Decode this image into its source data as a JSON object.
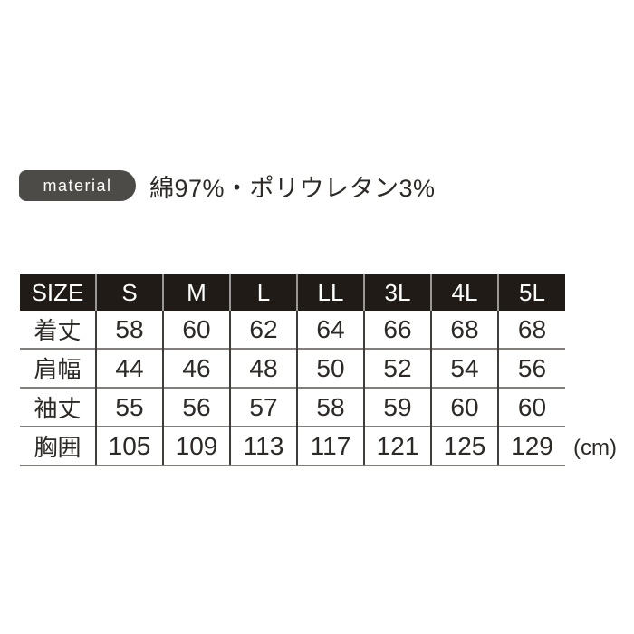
{
  "material": {
    "badge_label": "material",
    "composition": "綿97%・ポリウレタン3%"
  },
  "size_table": {
    "columns": [
      "SIZE",
      "S",
      "M",
      "L",
      "LL",
      "3L",
      "4L",
      "5L"
    ],
    "rows": [
      {
        "label": "着丈",
        "values": [
          "58",
          "60",
          "62",
          "64",
          "66",
          "68",
          "68"
        ]
      },
      {
        "label": "肩幅",
        "values": [
          "44",
          "46",
          "48",
          "50",
          "52",
          "54",
          "56"
        ]
      },
      {
        "label": "袖丈",
        "values": [
          "55",
          "56",
          "57",
          "58",
          "59",
          "60",
          "60"
        ]
      },
      {
        "label": "胸囲",
        "values": [
          "105",
          "109",
          "113",
          "117",
          "121",
          "125",
          "129"
        ]
      }
    ],
    "unit_label": "(cm)"
  },
  "colors": {
    "badge_bg": "#4d4b48",
    "header_bg": "#211b17",
    "header_text": "#ffffff",
    "body_text": "#2d2926",
    "header_divider": "#9a9896",
    "body_vline": "#403c39",
    "body_hline": "#817e7b",
    "page_bg": "#ffffff"
  }
}
